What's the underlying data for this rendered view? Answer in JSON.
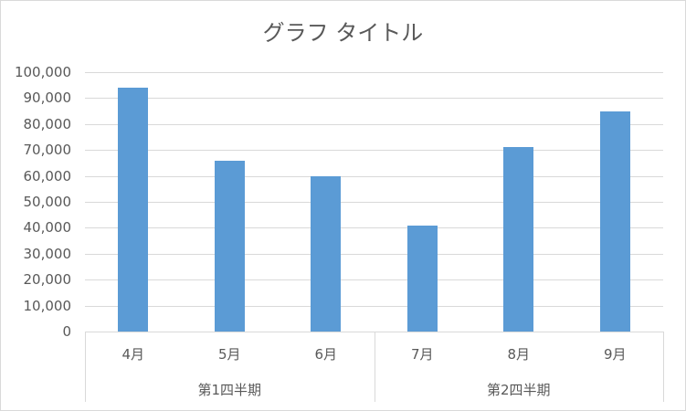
{
  "chart_data": {
    "type": "bar",
    "title": "グラフ タイトル",
    "categories": [
      "4月",
      "5月",
      "6月",
      "7月",
      "8月",
      "9月"
    ],
    "category_groups": [
      {
        "label": "第1四半期",
        "categories": [
          "4月",
          "5月",
          "6月"
        ]
      },
      {
        "label": "第2四半期",
        "categories": [
          "7月",
          "8月",
          "9月"
        ]
      }
    ],
    "values": [
      94000,
      66000,
      60000,
      41000,
      71000,
      85000
    ],
    "xlabel": "",
    "ylabel": "",
    "ylim": [
      0,
      100000
    ],
    "yticks": [
      "0",
      "10,000",
      "20,000",
      "30,000",
      "40,000",
      "50,000",
      "60,000",
      "70,000",
      "80,000",
      "90,000",
      "100,000"
    ],
    "grid": true,
    "legend": "none",
    "bar_color": "#5b9bd5"
  }
}
